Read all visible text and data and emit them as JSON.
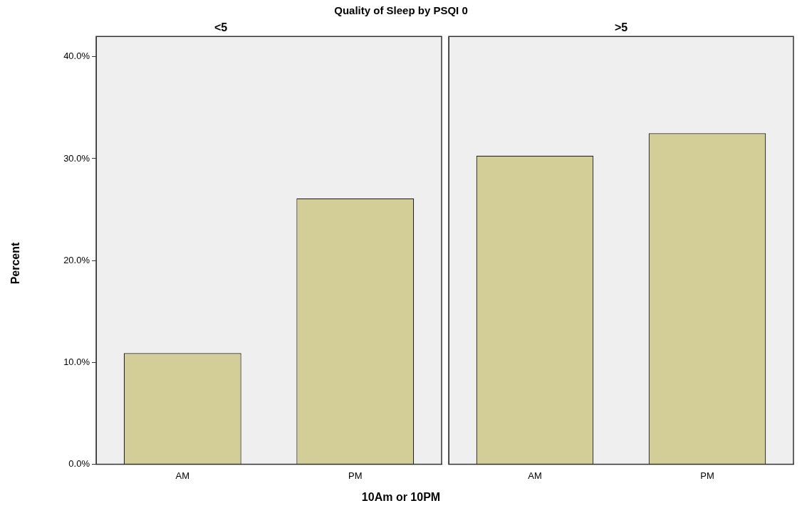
{
  "chart_data": [
    {
      "type": "bar",
      "title": "Quality of Sleep by PSQI 0",
      "subtitle": "<5",
      "xlabel": "10Am or 10PM",
      "ylabel": "Percent",
      "categories": [
        "AM",
        "PM"
      ],
      "values": [
        10.9,
        26.1
      ],
      "color": "#d3cd98",
      "ylim": [
        0,
        42
      ],
      "yticks": [
        {
          "value": 0,
          "label": "0.0%"
        },
        {
          "value": 10,
          "label": "10.0%"
        },
        {
          "value": 20,
          "label": "20.0%"
        },
        {
          "value": 30,
          "label": "30.0%"
        },
        {
          "value": 40,
          "label": "40.0%"
        }
      ],
      "grid": false,
      "legend": false
    },
    {
      "type": "bar",
      "subtitle": ">5",
      "categories": [
        "AM",
        "PM"
      ],
      "values": [
        30.3,
        32.5
      ],
      "color": "#d3cd98",
      "ylim": [
        0,
        42
      ],
      "tick_labels": "x",
      "grid": false,
      "legend": false
    }
  ]
}
